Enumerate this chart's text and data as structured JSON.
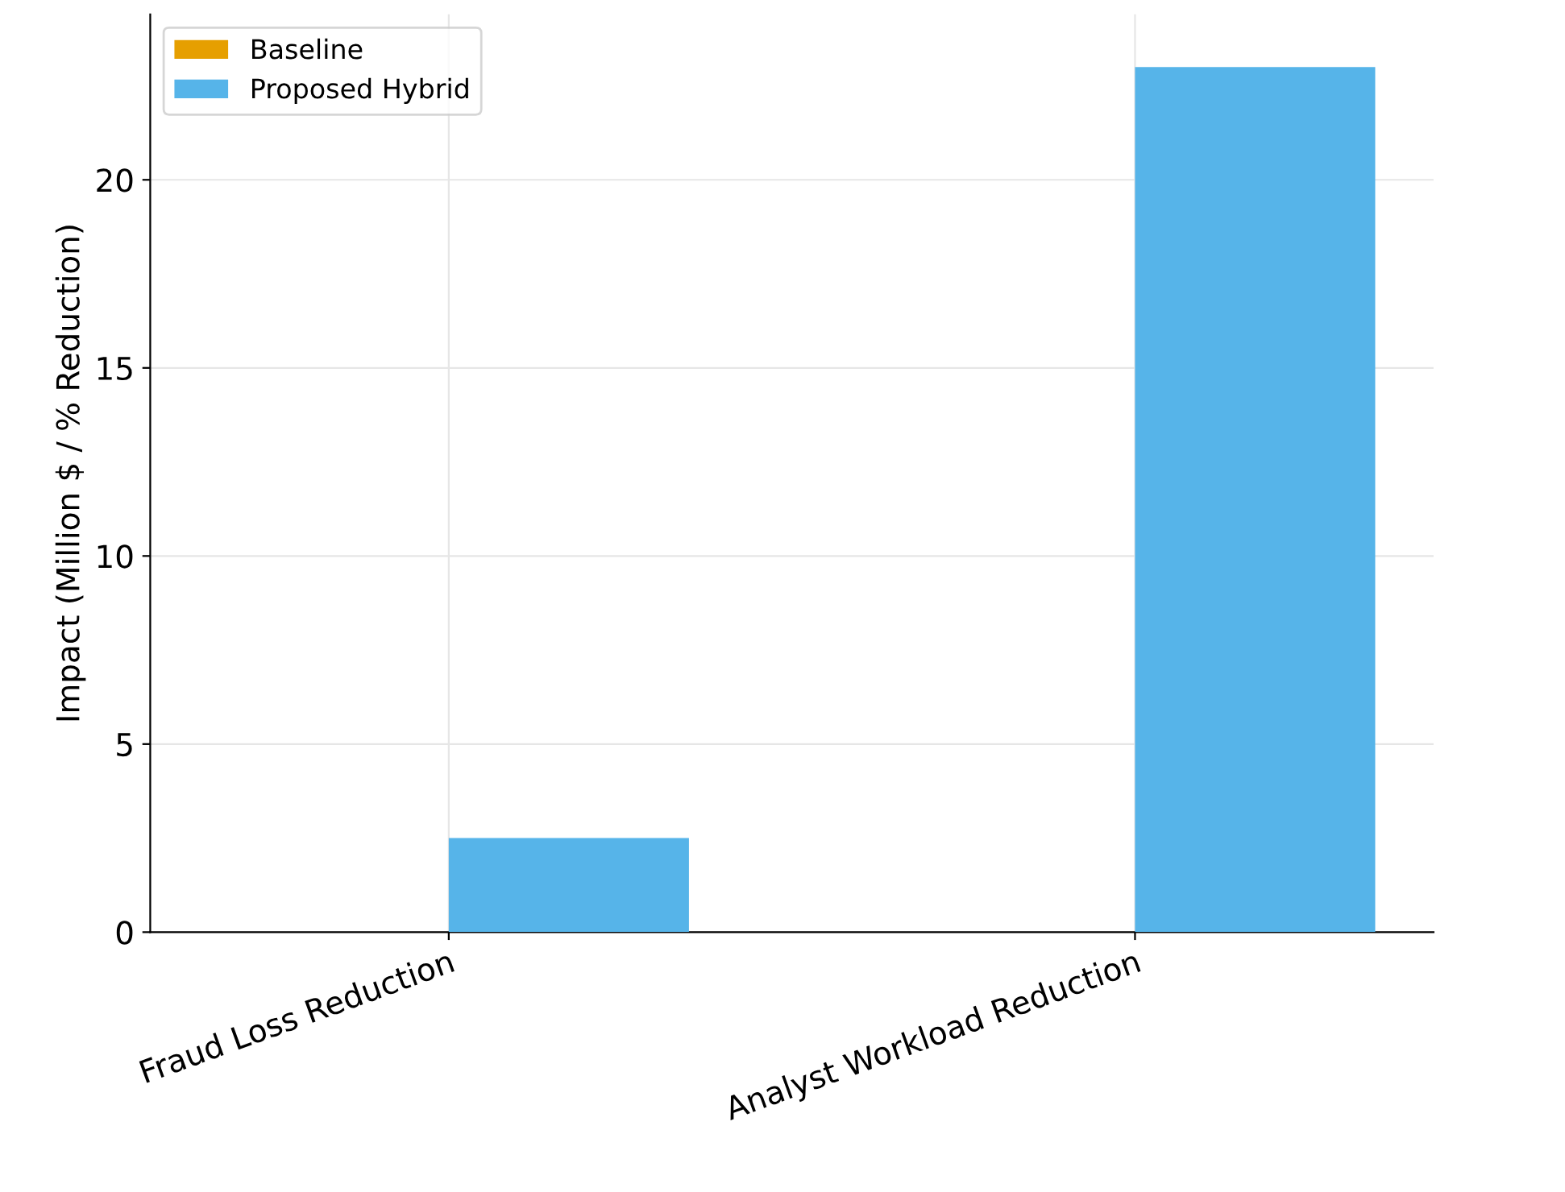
{
  "chart_data": {
    "type": "bar",
    "ylabel": "Impact (Million $ / % Reduction)",
    "categories": [
      "Fraud Loss Reduction",
      "Analyst Workload Reduction"
    ],
    "series": [
      {
        "name": "Baseline",
        "color": "#e69f00",
        "values": [
          0,
          0
        ]
      },
      {
        "name": "Proposed Hybrid",
        "color": "#56b4e9",
        "values": [
          2.5,
          23
        ]
      }
    ],
    "ylim": [
      0,
      24.4
    ],
    "yticks": [
      0,
      5,
      10,
      15,
      20
    ],
    "grid": true,
    "legend": "top left"
  }
}
